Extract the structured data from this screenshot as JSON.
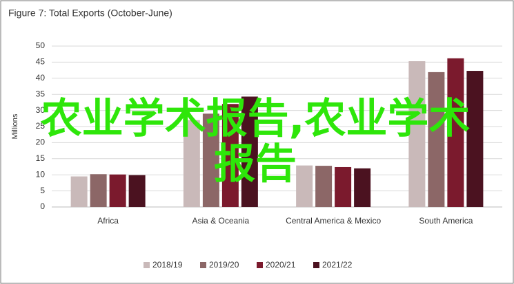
{
  "chart_data": {
    "type": "bar",
    "title": "Figure 7: Total Exports (October-June)",
    "y_label": "Millions",
    "categories": [
      "Africa",
      "Asia & Oceania",
      "Central America & Mexico",
      "South America"
    ],
    "series": [
      {
        "name": "2018/19",
        "color": "#c9b9b9",
        "values": [
          9.5,
          27,
          12.9,
          45.3
        ]
      },
      {
        "name": "2019/20",
        "color": "#8c6767",
        "values": [
          10.2,
          29,
          12.8,
          41.9
        ]
      },
      {
        "name": "2020/21",
        "color": "#7b1a2d",
        "values": [
          10.1,
          32,
          12.4,
          46.2
        ]
      },
      {
        "name": "2021/22",
        "color": "#4b1220",
        "values": [
          9.9,
          34.3,
          12.0,
          42.3
        ]
      }
    ],
    "ylim": [
      0,
      50
    ],
    "yticks": [
      0,
      5,
      10,
      15,
      20,
      25,
      30,
      35,
      40,
      45,
      50
    ],
    "grid": true,
    "watermark": "农业学术报告,农业学术报告"
  }
}
